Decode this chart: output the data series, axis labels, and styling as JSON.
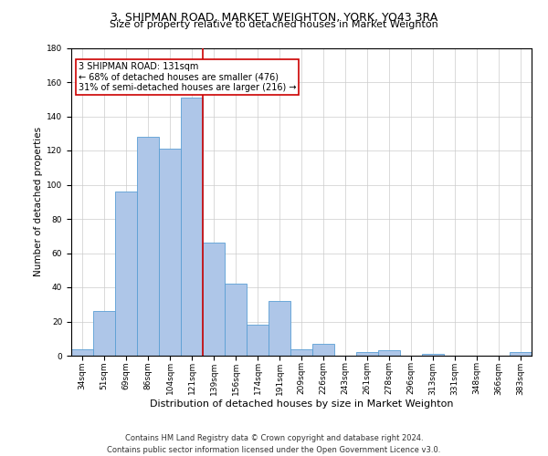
{
  "title": "3, SHIPMAN ROAD, MARKET WEIGHTON, YORK, YO43 3RA",
  "subtitle": "Size of property relative to detached houses in Market Weighton",
  "xlabel": "Distribution of detached houses by size in Market Weighton",
  "ylabel": "Number of detached properties",
  "bar_color": "#aec6e8",
  "bar_edge_color": "#5a9fd4",
  "categories": [
    "34sqm",
    "51sqm",
    "69sqm",
    "86sqm",
    "104sqm",
    "121sqm",
    "139sqm",
    "156sqm",
    "174sqm",
    "191sqm",
    "209sqm",
    "226sqm",
    "243sqm",
    "261sqm",
    "278sqm",
    "296sqm",
    "313sqm",
    "331sqm",
    "348sqm",
    "366sqm",
    "383sqm"
  ],
  "values": [
    4,
    26,
    96,
    128,
    121,
    151,
    66,
    42,
    18,
    32,
    4,
    7,
    0,
    2,
    3,
    0,
    1,
    0,
    0,
    0,
    2
  ],
  "ylim": [
    0,
    180
  ],
  "yticks": [
    0,
    20,
    40,
    60,
    80,
    100,
    120,
    140,
    160,
    180
  ],
  "property_line_x": 5.5,
  "property_line_color": "#cc0000",
  "annotation_text": "3 SHIPMAN ROAD: 131sqm\n← 68% of detached houses are smaller (476)\n31% of semi-detached houses are larger (216) →",
  "annotation_box_color": "#ffffff",
  "annotation_box_edge": "#cc0000",
  "footer1": "Contains HM Land Registry data © Crown copyright and database right 2024.",
  "footer2": "Contains public sector information licensed under the Open Government Licence v3.0.",
  "background_color": "#ffffff",
  "grid_color": "#cccccc",
  "title_fontsize": 9,
  "subtitle_fontsize": 8,
  "xlabel_fontsize": 8,
  "ylabel_fontsize": 7.5,
  "tick_fontsize": 6.5,
  "annotation_fontsize": 7,
  "footer_fontsize": 6
}
